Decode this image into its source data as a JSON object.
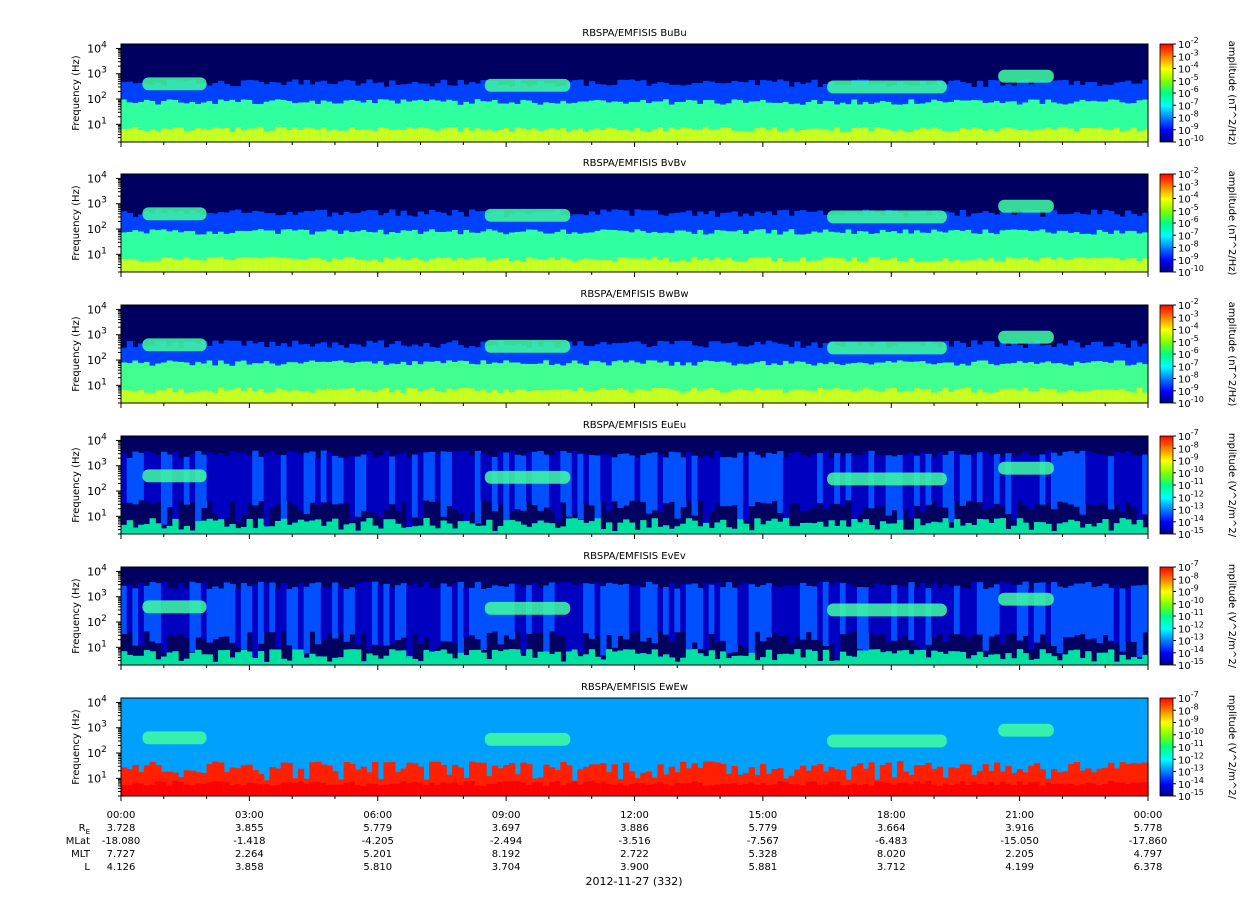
{
  "chart_data": {
    "type": "heatmap",
    "yscale": "log",
    "ylim": [
      2,
      15000
    ],
    "ylabel": "Frequency (Hz)",
    "y_tick_values": [
      10,
      100,
      1000,
      10000
    ],
    "y_tick_labels": [
      {
        "base": "10",
        "exp": "1"
      },
      {
        "base": "10",
        "exp": "2"
      },
      {
        "base": "10",
        "exp": "3"
      },
      {
        "base": "10",
        "exp": "4"
      }
    ],
    "x_tick_labels": [
      "00:00",
      "03:00",
      "06:00",
      "09:00",
      "12:00",
      "15:00",
      "18:00",
      "21:00",
      "00:00"
    ],
    "x_range_hours": [
      0,
      24
    ],
    "date_label": "2012-11-27 (332)",
    "colormap": [
      "#000080",
      "#0000ff",
      "#0080ff",
      "#00ffff",
      "#00ff80",
      "#80ff00",
      "#ffff00",
      "#ff8000",
      "#ff0000"
    ],
    "panels": [
      {
        "title": "RBSPA/EMFISIS  BuBu",
        "colorbar_label": "amplitude (nT^2/Hz)",
        "colorbar_ticks": [
          {
            "base": "10",
            "exp": "-2"
          },
          {
            "base": "10",
            "exp": "-3"
          },
          {
            "base": "10",
            "exp": "-4"
          },
          {
            "base": "10",
            "exp": "-5"
          },
          {
            "base": "10",
            "exp": "-6"
          },
          {
            "base": "10",
            "exp": "-7"
          },
          {
            "base": "10",
            "exp": "-8"
          },
          {
            "base": "10",
            "exp": "-9"
          },
          {
            "base": "10",
            "exp": "-10"
          }
        ]
      },
      {
        "title": "RBSPA/EMFISIS  BvBv",
        "colorbar_label": "amplitude (nT^2/Hz)",
        "colorbar_ticks": [
          {
            "base": "10",
            "exp": "-2"
          },
          {
            "base": "10",
            "exp": "-3"
          },
          {
            "base": "10",
            "exp": "-4"
          },
          {
            "base": "10",
            "exp": "-5"
          },
          {
            "base": "10",
            "exp": "-6"
          },
          {
            "base": "10",
            "exp": "-7"
          },
          {
            "base": "10",
            "exp": "-8"
          },
          {
            "base": "10",
            "exp": "-9"
          },
          {
            "base": "10",
            "exp": "-10"
          }
        ]
      },
      {
        "title": "RBSPA/EMFISIS  BwBw",
        "colorbar_label": "amplitude (nT^2/Hz)",
        "colorbar_ticks": [
          {
            "base": "10",
            "exp": "-2"
          },
          {
            "base": "10",
            "exp": "-3"
          },
          {
            "base": "10",
            "exp": "-4"
          },
          {
            "base": "10",
            "exp": "-5"
          },
          {
            "base": "10",
            "exp": "-6"
          },
          {
            "base": "10",
            "exp": "-7"
          },
          {
            "base": "10",
            "exp": "-8"
          },
          {
            "base": "10",
            "exp": "-9"
          },
          {
            "base": "10",
            "exp": "-10"
          }
        ]
      },
      {
        "title": "RBSPA/EMFISIS  EuEu",
        "colorbar_label": "mplitude (V^2/m^2/",
        "colorbar_ticks": [
          {
            "base": "10",
            "exp": "-7"
          },
          {
            "base": "10",
            "exp": "-8"
          },
          {
            "base": "10",
            "exp": "-9"
          },
          {
            "base": "10",
            "exp": "-10"
          },
          {
            "base": "10",
            "exp": "-11"
          },
          {
            "base": "10",
            "exp": "-12"
          },
          {
            "base": "10",
            "exp": "-13"
          },
          {
            "base": "10",
            "exp": "-14"
          },
          {
            "base": "10",
            "exp": "-15"
          }
        ]
      },
      {
        "title": "RBSPA/EMFISIS  EvEv",
        "colorbar_label": "mplitude (V^2/m^2/",
        "colorbar_ticks": [
          {
            "base": "10",
            "exp": "-7"
          },
          {
            "base": "10",
            "exp": "-8"
          },
          {
            "base": "10",
            "exp": "-9"
          },
          {
            "base": "10",
            "exp": "-10"
          },
          {
            "base": "10",
            "exp": "-11"
          },
          {
            "base": "10",
            "exp": "-12"
          },
          {
            "base": "10",
            "exp": "-13"
          },
          {
            "base": "10",
            "exp": "-14"
          },
          {
            "base": "10",
            "exp": "-15"
          }
        ]
      },
      {
        "title": "RBSPA/EMFISIS  EwEw",
        "colorbar_label": "mplitude (V^2/m^2/",
        "colorbar_ticks": [
          {
            "base": "10",
            "exp": "-7"
          },
          {
            "base": "10",
            "exp": "-8"
          },
          {
            "base": "10",
            "exp": "-9"
          },
          {
            "base": "10",
            "exp": "-10"
          },
          {
            "base": "10",
            "exp": "-11"
          },
          {
            "base": "10",
            "exp": "-12"
          },
          {
            "base": "10",
            "exp": "-13"
          },
          {
            "base": "10",
            "exp": "-14"
          },
          {
            "base": "10",
            "exp": "-15"
          }
        ]
      }
    ],
    "ephemeris": {
      "rows": [
        {
          "label": "R",
          "label_sub": "E",
          "values": [
            "3.728",
            "3.855",
            "5.779",
            "3.697",
            "3.886",
            "5.779",
            "3.664",
            "3.916",
            "5.778"
          ]
        },
        {
          "label": "MLat",
          "values": [
            "-18.080",
            "-1.418",
            "-4.205",
            "-2.494",
            "-3.516",
            "-7.567",
            "-6.483",
            "-15.050",
            "-17.860"
          ]
        },
        {
          "label": "MLT",
          "values": [
            "7.727",
            "2.264",
            "5.201",
            "8.192",
            "2.722",
            "5.328",
            "8.020",
            "2.205",
            "4.797"
          ]
        },
        {
          "label": "L",
          "values": [
            "4.126",
            "3.858",
            "5.810",
            "3.704",
            "3.900",
            "5.881",
            "3.712",
            "4.199",
            "6.378"
          ]
        }
      ]
    }
  }
}
